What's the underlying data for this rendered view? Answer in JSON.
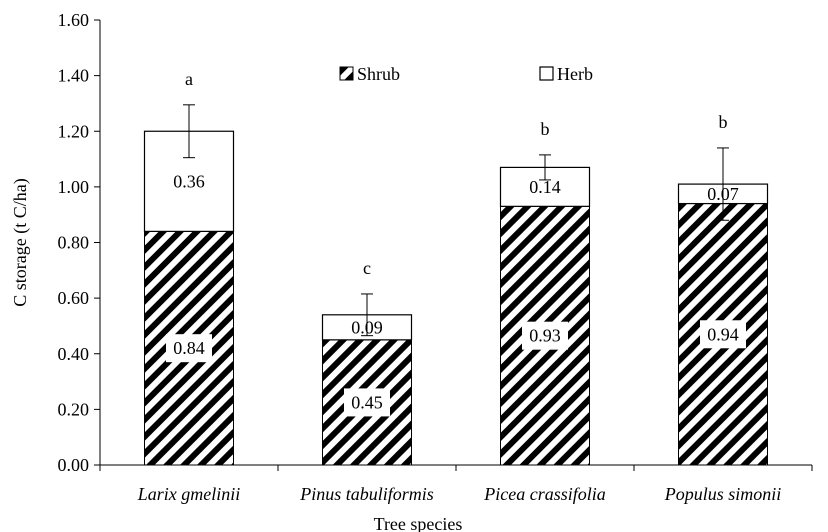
{
  "chart_data": {
    "type": "bar",
    "stacked": true,
    "categories": [
      "Larix gmelinii",
      "Pinus tabuliformis",
      "Picea crassifolia",
      "Populus simonii"
    ],
    "series": [
      {
        "name": "Shrub",
        "values": [
          0.84,
          0.45,
          0.93,
          0.94
        ],
        "pattern": "diagonal-hatch",
        "color": "#000000"
      },
      {
        "name": "Herb",
        "values": [
          0.36,
          0.09,
          0.14,
          0.07
        ],
        "pattern": "none",
        "color": "#ffffff"
      }
    ],
    "data_labels": {
      "Shrub": [
        "0.84",
        "0.45",
        "0.93",
        "0.94"
      ],
      "Herb": [
        "0.36",
        "0.09",
        "0.14",
        "0.07"
      ]
    },
    "error_bars": [
      0.095,
      0.075,
      0.045,
      0.13
    ],
    "significance_letters": [
      "a",
      "c",
      "b",
      "b"
    ],
    "title": "",
    "xlabel": "Tree species",
    "ylabel": "C storage (t C/ha)",
    "ylim": [
      0,
      1.6
    ],
    "yticks": [
      "0.00",
      "0.20",
      "0.40",
      "0.60",
      "0.80",
      "1.00",
      "1.20",
      "1.40",
      "1.60"
    ],
    "grid": false,
    "legend_position": "top-center"
  }
}
